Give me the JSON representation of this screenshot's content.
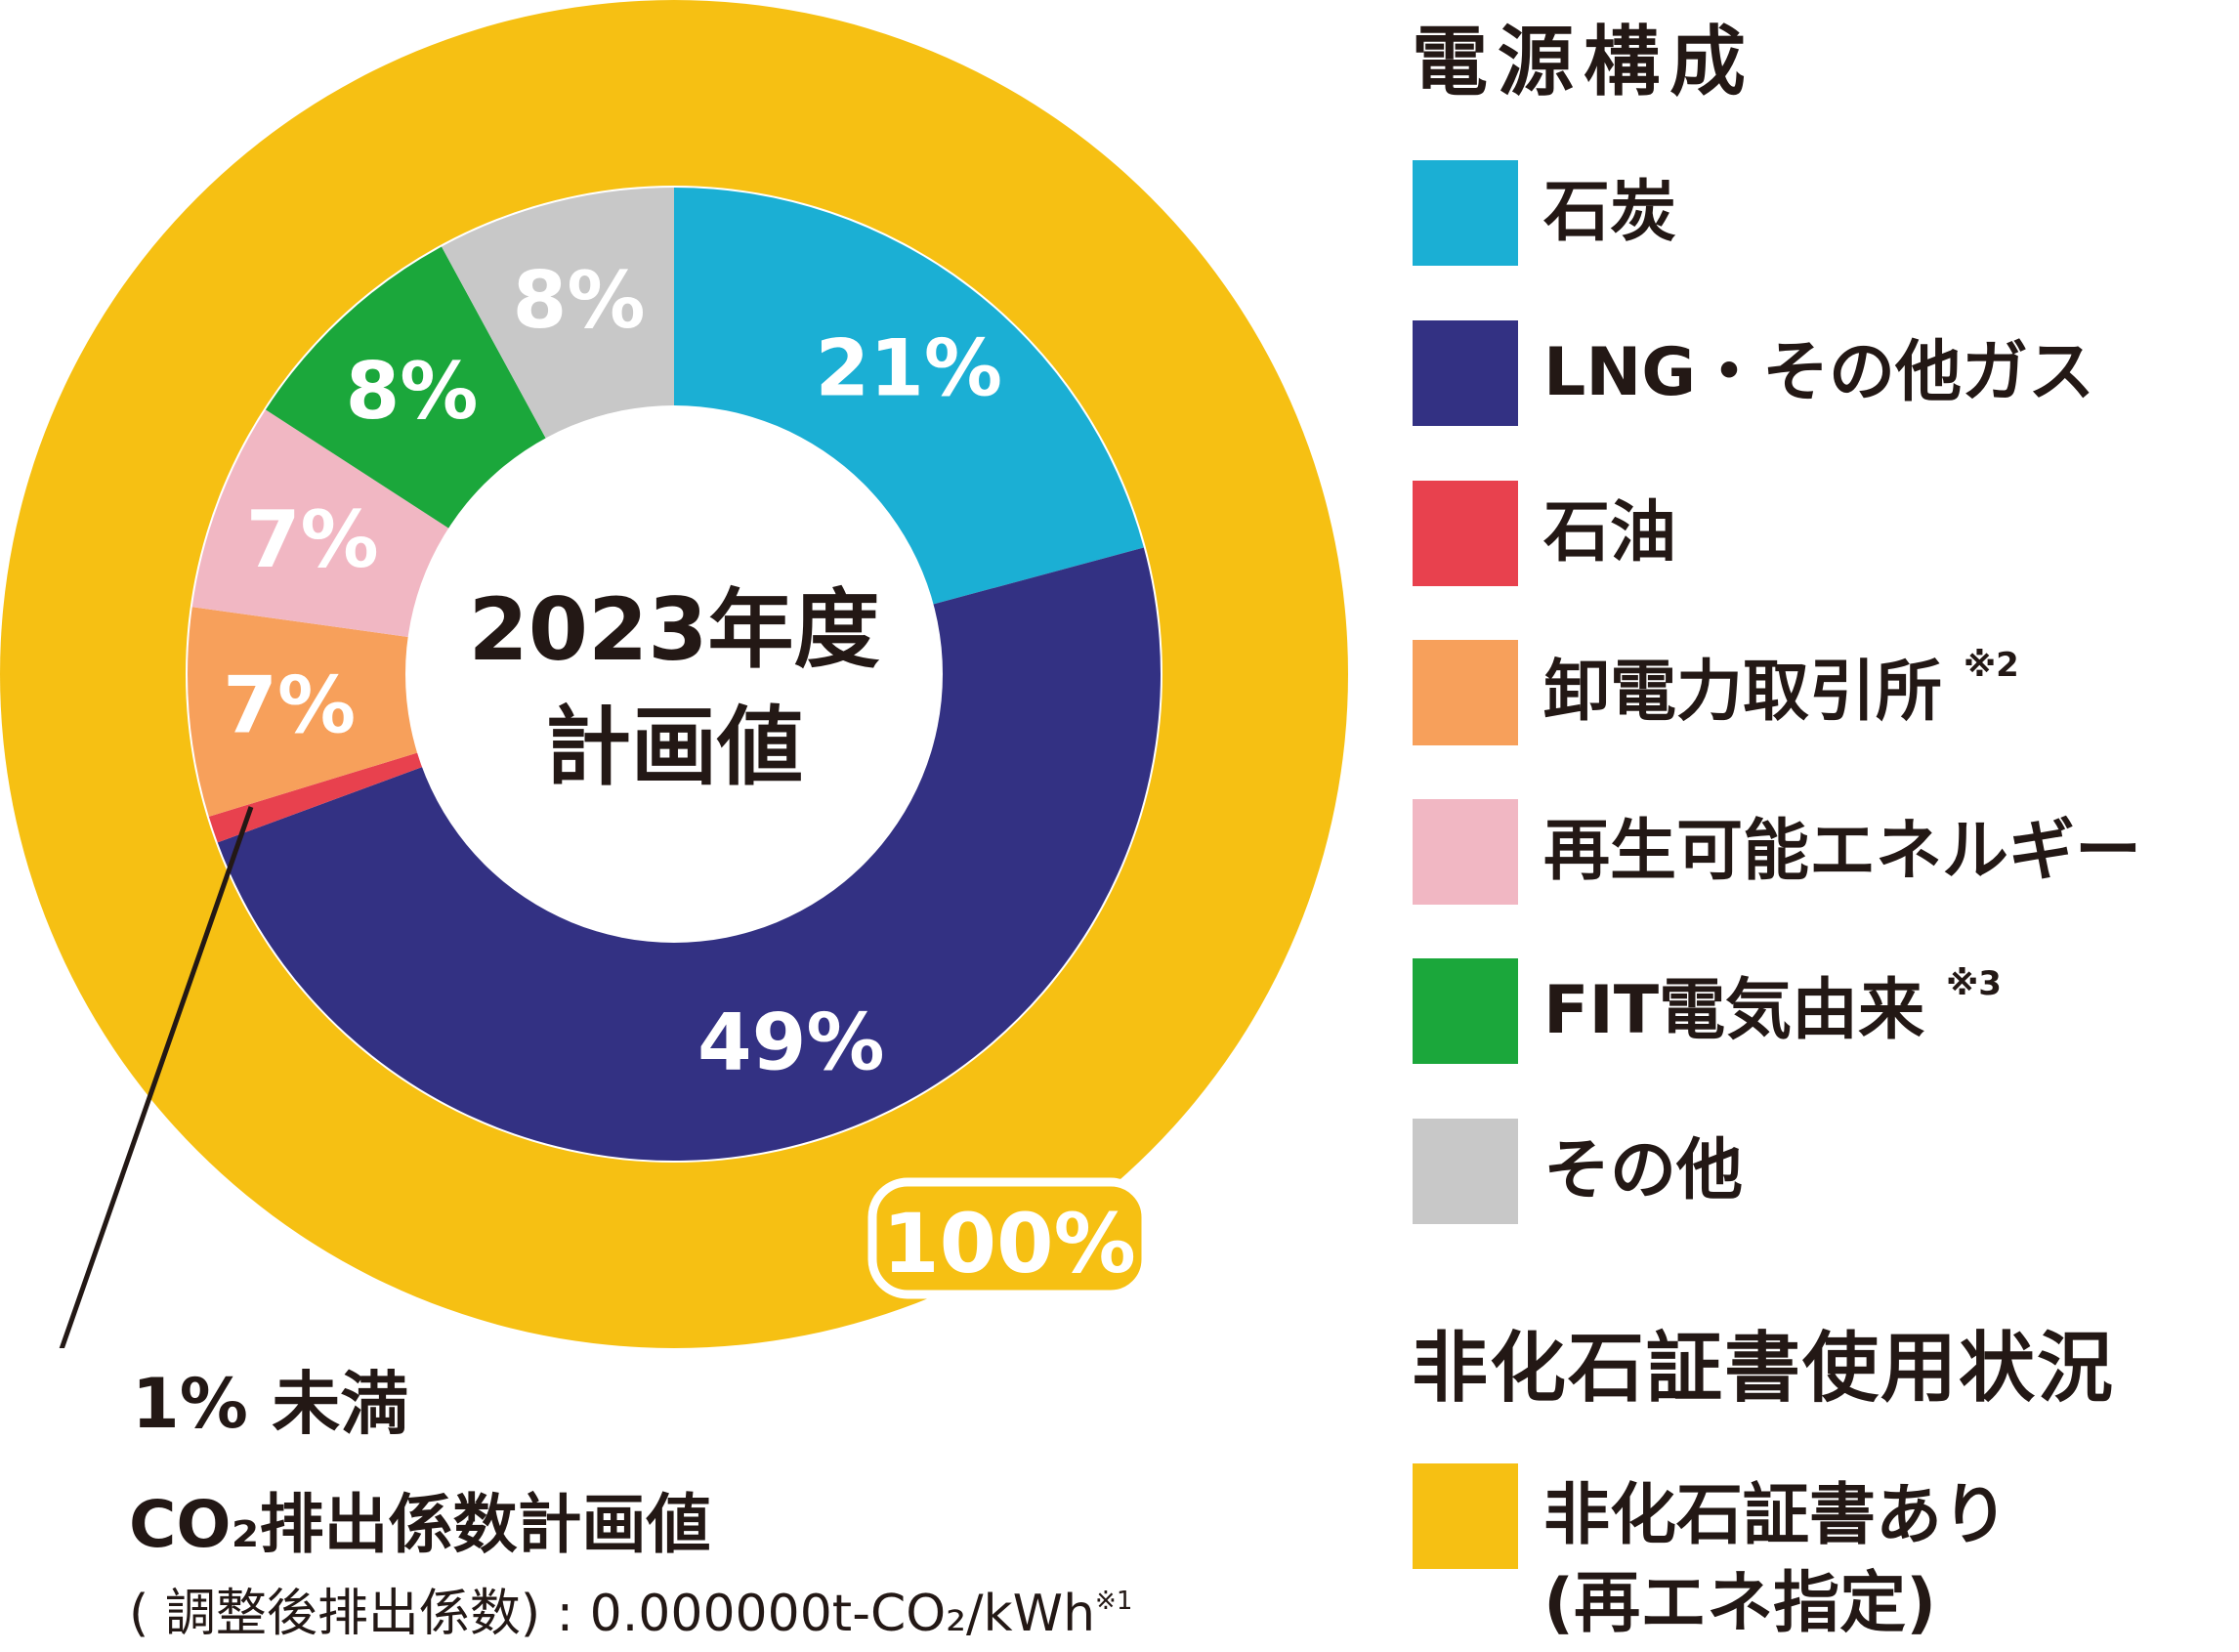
{
  "chart_data": {
    "type": "donut",
    "center_label": [
      "2023年度",
      "計画値"
    ],
    "inner_ring": {
      "slices": [
        {
          "name": "石炭",
          "value": 21,
          "label": "21%",
          "color": "#1bafd4"
        },
        {
          "name": "LNG・その他ガス",
          "value": 49,
          "label": "49%",
          "color": "#333183"
        },
        {
          "name": "石油",
          "value": 0.9,
          "label": "",
          "color": "#e8414e"
        },
        {
          "name": "卸電力取引所",
          "value": 7,
          "label": "7%",
          "color": "#f7a05b"
        },
        {
          "name": "再生可能エネルギー",
          "value": 7,
          "label": "7%",
          "color": "#f1b7c3"
        },
        {
          "name": "FIT電気由来",
          "value": 8,
          "label": "8%",
          "color": "#1ba73b"
        },
        {
          "name": "その他",
          "value": 8,
          "label": "8%",
          "color": "#c8c8c8"
        }
      ]
    },
    "outer_ring": {
      "name": "非化石証書あり(再エネ指定)",
      "value": 100,
      "label": "100%",
      "color": "#f6c013"
    }
  },
  "legend": {
    "title_mix": "電源構成",
    "items": [
      {
        "label": "石炭",
        "color": "#1bafd4",
        "note": ""
      },
      {
        "label": "LNG・その他ガス",
        "color": "#333183",
        "note": ""
      },
      {
        "label": "石油",
        "color": "#e8414e",
        "note": ""
      },
      {
        "label": "卸電力取引所",
        "color": "#f7a05b",
        "note": "※2"
      },
      {
        "label": "再生可能エネルギー",
        "color": "#f1b7c3",
        "note": ""
      },
      {
        "label": "FIT電気由来",
        "color": "#1ba73b",
        "note": "※3"
      },
      {
        "label": "その他",
        "color": "#c8c8c8",
        "note": ""
      }
    ],
    "title_certificate": "非化石証書使用状況",
    "certificate_item": {
      "label_line1": "非化石証書あり",
      "label_line2": "(再エネ指定)",
      "color": "#f6c013"
    }
  },
  "footnotes": {
    "small_share_label": "1% 未満",
    "co2_title": "CO₂排出係数計画値",
    "co2_detail": "( 調整後排出係数) : 0.000000t-CO₂/kWh",
    "co2_note": "※1"
  }
}
